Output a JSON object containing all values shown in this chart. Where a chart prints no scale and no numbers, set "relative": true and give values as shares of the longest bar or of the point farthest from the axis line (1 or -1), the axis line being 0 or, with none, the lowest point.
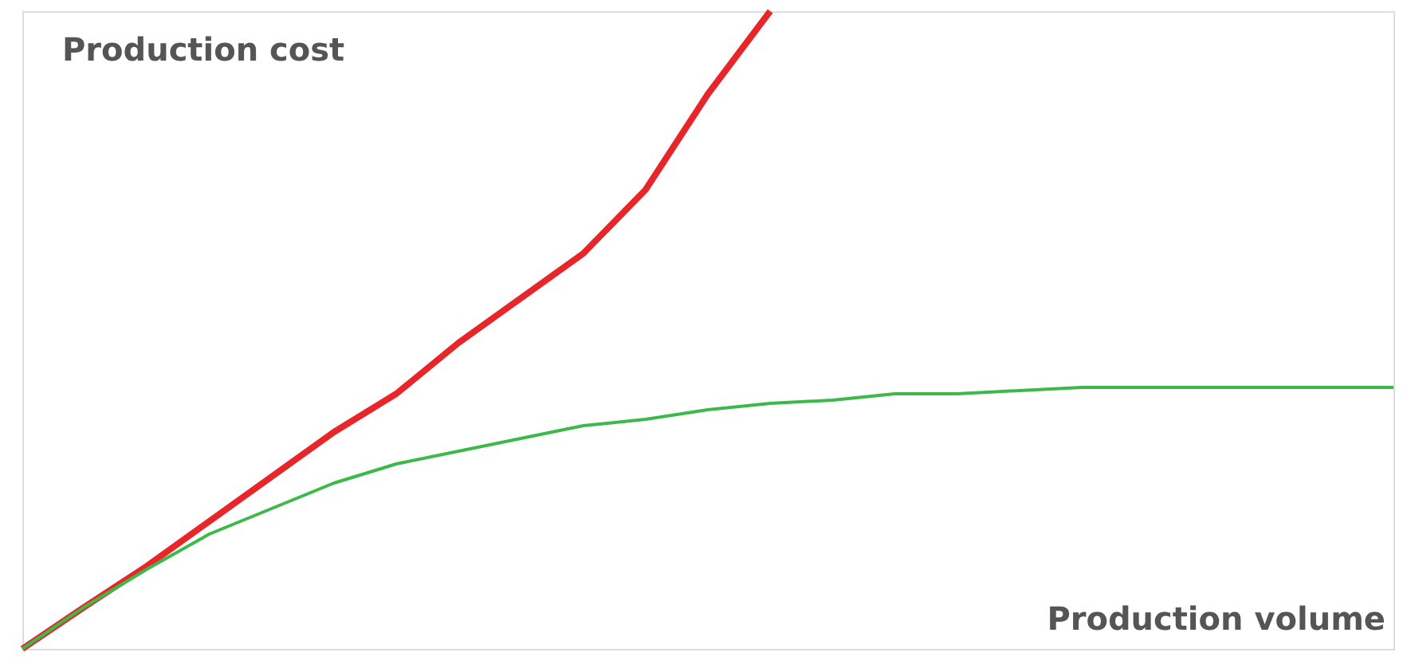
{
  "chart_data": {
    "type": "line",
    "relative": true,
    "ylabel": "Production cost",
    "xlabel": "Production volume",
    "grid": false,
    "tick_labels": false,
    "line_style": "solid",
    "marker": "none",
    "categories": [
      null,
      null,
      null,
      null,
      null,
      null,
      null,
      null,
      null,
      null,
      null,
      null,
      null,
      null,
      null,
      null,
      null,
      null,
      null,
      null,
      null,
      null,
      null
    ],
    "series": [
      {
        "color": "#e8262a",
        "values": [
          0,
          0.066,
          0.13,
          0.2,
          0.27,
          0.34,
          0.4,
          0.48,
          0.55,
          0.62,
          0.72,
          0.87,
          1.0,
          null,
          null,
          null,
          null,
          null,
          null,
          null,
          null,
          null,
          null
        ]
      },
      {
        "color": "#3cb94a",
        "values": [
          0,
          0.066,
          0.125,
          0.18,
          0.22,
          0.26,
          0.29,
          0.31,
          0.33,
          0.35,
          0.36,
          0.375,
          0.385,
          0.39,
          0.4,
          0.4,
          0.405,
          0.41,
          0.41,
          0.41,
          0.41,
          0.41,
          0.41
        ]
      }
    ]
  }
}
